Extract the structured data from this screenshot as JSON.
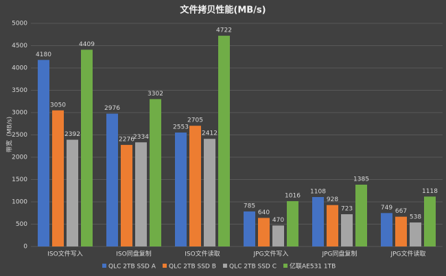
{
  "chart_data": {
    "type": "bar",
    "title": "文件拷贝性能(MB/s)",
    "y_label": "带宽（MB/s)",
    "categories": [
      "ISO文件写入",
      "ISO同盘复制",
      "ISO文件读取",
      "JPG文件写入",
      "JPG同盘复制",
      "JPG文件读取"
    ],
    "series": [
      {
        "name": "QLC 2TB SSD A",
        "color": "#4472c4",
        "values": [
          4180,
          2976,
          2553,
          785,
          1108,
          749
        ]
      },
      {
        "name": "QLC 2TB SSD B",
        "color": "#ed7d31",
        "values": [
          3050,
          2276,
          2705,
          640,
          928,
          667
        ]
      },
      {
        "name": "QLC 2TB SSD C",
        "color": "#a5a5a5",
        "values": [
          2392,
          2334,
          2412,
          470,
          723,
          538
        ]
      },
      {
        "name": "亿联AE531 1TB",
        "color": "#70ad47",
        "values": [
          4409,
          3302,
          4722,
          1016,
          1385,
          1118
        ]
      }
    ],
    "ylim": [
      0,
      5000
    ],
    "yticks": [
      0,
      500,
      1000,
      1500,
      2000,
      2500,
      3000,
      3500,
      4000,
      4500,
      5000
    ],
    "grid": true,
    "legend": "bottom"
  }
}
